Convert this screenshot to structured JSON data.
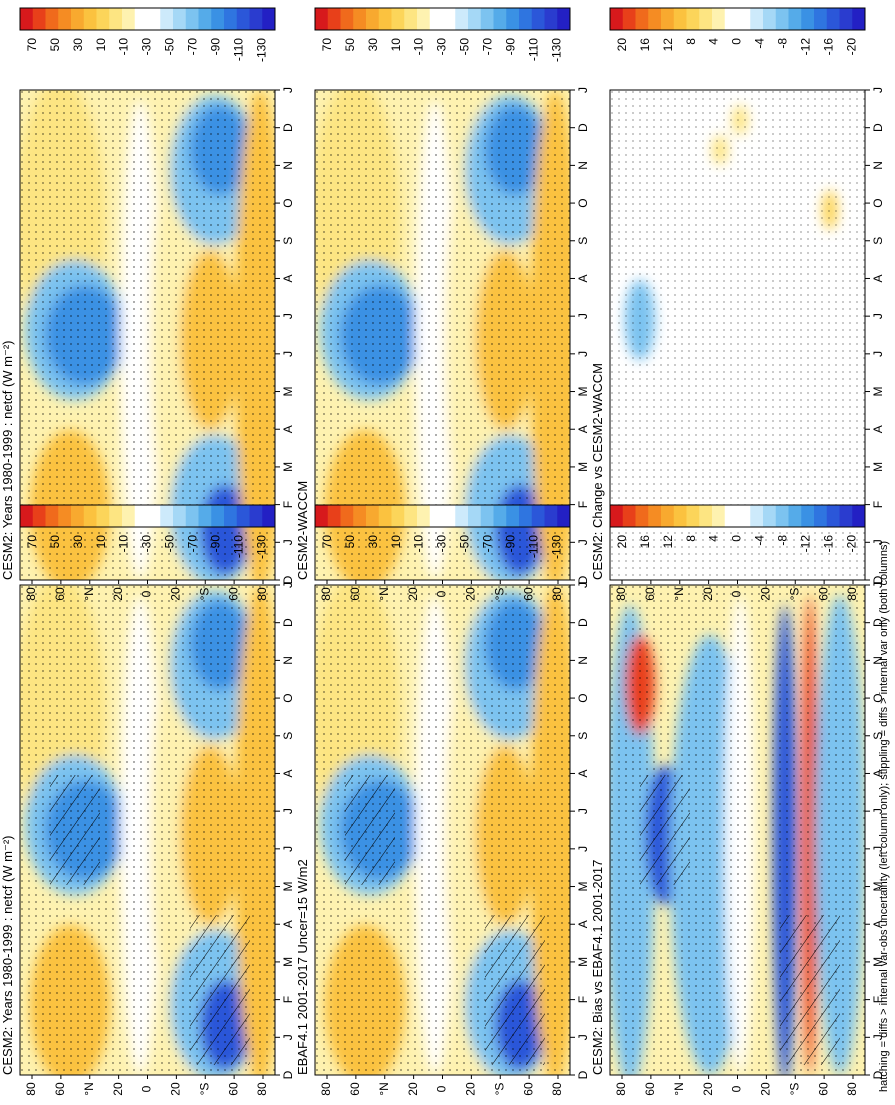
{
  "footer": "hatching = diffs > internal var-obs uncertainty (left column only); stippling = diffs > internal var only (both columns)",
  "x_ticks": [
    "D",
    "J",
    "F",
    "M",
    "A",
    "M",
    "J",
    "J",
    "A",
    "S",
    "O",
    "N",
    "D",
    "J"
  ],
  "y_ticks": [
    "80",
    "60",
    "°N",
    "20",
    "0",
    "20",
    "°S",
    "60",
    "80"
  ],
  "colorbars": {
    "abs": {
      "labels": [
        "70",
        "50",
        "30",
        "10",
        "-10",
        "-30",
        "-50",
        "-70",
        "-90",
        "-110",
        "-130"
      ],
      "colors": [
        "#d7191c",
        "#e8401a",
        "#f06a1c",
        "#f58c23",
        "#f8a92f",
        "#fbc23f",
        "#fcd55a",
        "#fde582",
        "#fef2b0",
        "#ffffff",
        "#ffffff",
        "#cdeafb",
        "#a5d8f6",
        "#7cc3f0",
        "#55abe9",
        "#3a91e4",
        "#2f75e0",
        "#2b57d9",
        "#2a3ccf",
        "#2320c4"
      ]
    },
    "diff": {
      "labels": [
        "20",
        "16",
        "12",
        "8",
        "4",
        "0",
        "-4",
        "-8",
        "-12",
        "-16",
        "-20"
      ],
      "colors": [
        "#d7191c",
        "#e8401a",
        "#f06a1c",
        "#f58c23",
        "#f8a92f",
        "#fbc23f",
        "#fcd55a",
        "#fde582",
        "#fef2b0",
        "#ffffff",
        "#ffffff",
        "#cdeafb",
        "#a5d8f6",
        "#7cc3f0",
        "#55abe9",
        "#3a91e4",
        "#2f75e0",
        "#2b57d9",
        "#2a3ccf",
        "#2320c4"
      ]
    }
  },
  "panels": {
    "left_top": {
      "title": "CESM2: Years 1980-1999 : netcf (W m⁻²)"
    },
    "left_mid": {
      "title": "EBAF4.1 2001-2017 Uncer=15 W/m2"
    },
    "left_bot": {
      "title": "CESM2: Bias vs EBAF4.1 2001-2017"
    },
    "right_top": {
      "title": "CESM2: Years 1980-1999 : netcf (W m⁻²)"
    },
    "right_mid": {
      "title": "CESM2-WACCM"
    },
    "right_bot": {
      "title": "CESM2: Change vs CESM2-WACCM"
    }
  },
  "chart_data": [
    {
      "type": "heatmap",
      "title": "CESM2: Years 1980-1999 : netcf (W m⁻²)",
      "x": "month",
      "y": "latitude",
      "colorbar": "abs",
      "hatching": true,
      "stippling": true
    },
    {
      "type": "heatmap",
      "title": "EBAF4.1 2001-2017 Uncer=15 W/m2",
      "x": "month",
      "y": "latitude",
      "colorbar": "abs",
      "hatching": true,
      "stippling": true
    },
    {
      "type": "heatmap",
      "title": "CESM2: Bias vs EBAF4.1 2001-2017",
      "x": "month",
      "y": "latitude",
      "colorbar": "diff",
      "hatching": true,
      "stippling": true
    },
    {
      "type": "heatmap",
      "title": "CESM2: Years 1980-1999 : netcf (W m⁻²)",
      "x": "month",
      "y": "latitude",
      "colorbar": "abs",
      "stippling": true
    },
    {
      "type": "heatmap",
      "title": "CESM2-WACCM",
      "x": "month",
      "y": "latitude",
      "colorbar": "abs",
      "stippling": true
    },
    {
      "type": "heatmap",
      "title": "CESM2: Change vs CESM2-WACCM",
      "x": "month",
      "y": "latitude",
      "colorbar": "diff",
      "stippling": true
    }
  ]
}
